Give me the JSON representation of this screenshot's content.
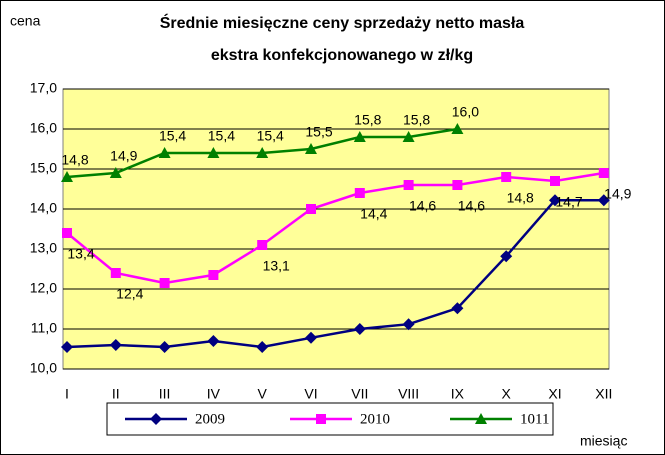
{
  "chart_data": {
    "type": "line",
    "title": [
      "Średnie miesięczne ceny sprzedaży netto masła",
      "ekstra konfekcjonowanego w zł/kg"
    ],
    "y_label": "cena",
    "x_label": "miesiąc",
    "categories": [
      "I",
      "II",
      "III",
      "IV",
      "V",
      "VI",
      "VII",
      "VIII",
      "IX",
      "X",
      "XI",
      "XII"
    ],
    "series": [
      {
        "name": "2009",
        "color": "#000080",
        "marker": "diamond",
        "values": [
          10.55,
          10.6,
          10.55,
          10.7,
          10.55,
          10.78,
          11.0,
          11.12,
          11.52,
          12.82,
          14.22,
          14.22
        ]
      },
      {
        "name": "2010",
        "color": "#ff00ff",
        "marker": "square",
        "values": [
          13.4,
          12.4,
          12.15,
          12.35,
          13.1,
          14.0,
          14.4,
          14.6,
          14.6,
          14.8,
          14.7,
          14.9
        ],
        "value_labels": [
          "13,4",
          "12,4",
          null,
          null,
          "13,1",
          null,
          "14,4",
          "14,6",
          "14,6",
          "14,8",
          "14,7",
          "14,9"
        ]
      },
      {
        "name": "1011",
        "color": "#008000",
        "marker": "triangle",
        "values": [
          14.8,
          14.9,
          15.4,
          15.4,
          15.4,
          15.5,
          15.8,
          15.8,
          16.0,
          null,
          null,
          null
        ],
        "value_labels": [
          "14,8",
          "14,9",
          "15,4",
          "15,4",
          "15,4",
          "15,5",
          "15,8",
          "15,8",
          "16,0",
          null,
          null,
          null
        ]
      }
    ],
    "ylim": [
      10,
      17
    ],
    "yticks": [
      {
        "value": 10,
        "label": "10,0"
      },
      {
        "value": 11,
        "label": "11,0"
      },
      {
        "value": 12,
        "label": "12,0"
      },
      {
        "value": 13,
        "label": "13,0"
      },
      {
        "value": 14,
        "label": "14,0"
      },
      {
        "value": 15,
        "label": "15,0"
      },
      {
        "value": 16,
        "label": "16,0"
      },
      {
        "value": 17,
        "label": "17,0"
      }
    ],
    "grid": true,
    "background": "#ffff99",
    "legend": "bottom"
  }
}
